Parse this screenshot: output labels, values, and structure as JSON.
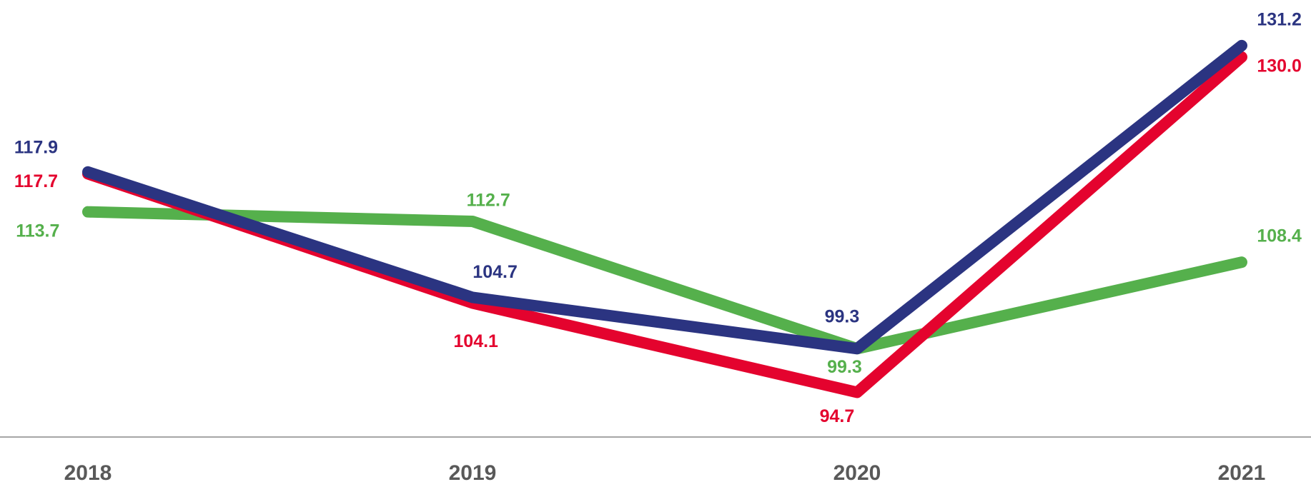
{
  "chart_data": {
    "type": "line",
    "categories": [
      "2018",
      "2019",
      "2020",
      "2021"
    ],
    "ylim": [
      90,
      136
    ],
    "series": [
      {
        "color": "#2b3481",
        "values": [
          117.9,
          104.7,
          99.3,
          131.2
        ]
      },
      {
        "color": "#e4032e",
        "values": [
          117.7,
          104.1,
          94.7,
          130.0
        ],
        "value_labels": [
          "117.7",
          "104.1",
          "94.7",
          "130.0"
        ]
      },
      {
        "color": "#55b04c",
        "values": [
          113.7,
          112.7,
          99.3,
          108.4
        ]
      }
    ]
  }
}
